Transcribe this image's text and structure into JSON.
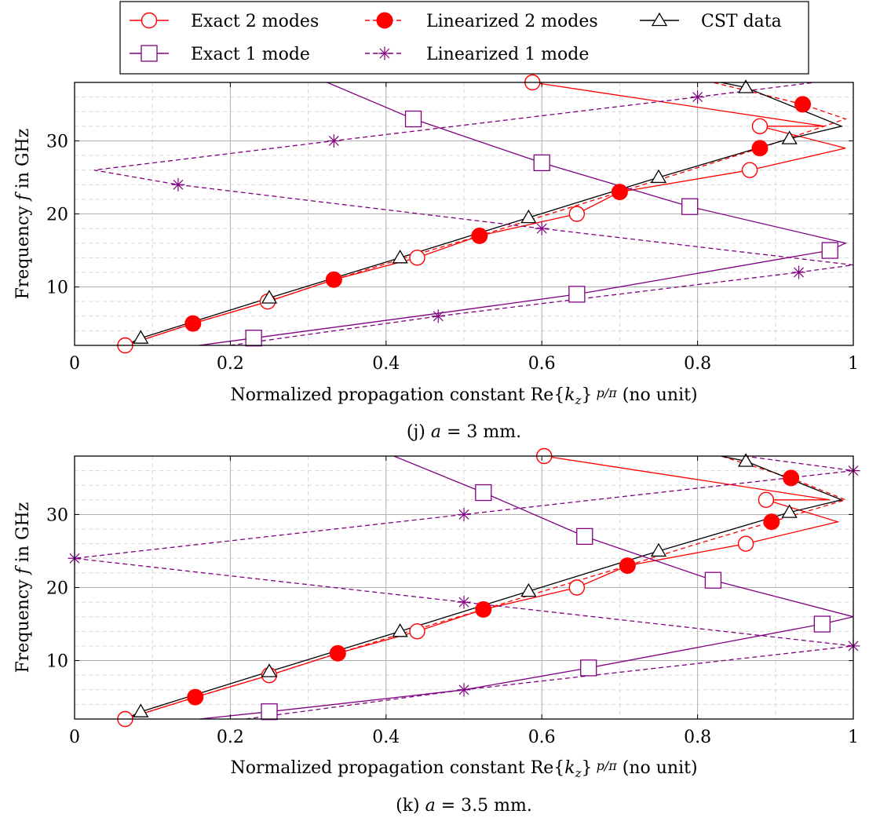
{
  "legend": {
    "items": [
      {
        "label": "Exact 2 modes",
        "series": "exact2"
      },
      {
        "label": "Linearized 2 modes",
        "series": "lin2"
      },
      {
        "label": "CST data",
        "series": "cst"
      },
      {
        "label": "Exact 1 mode",
        "series": "exact1"
      },
      {
        "label": "Linearized 1 mode",
        "series": "lin1"
      }
    ]
  },
  "colors": {
    "red": "#ff0000",
    "purple": "#800080",
    "black": "#000000",
    "grid": "#b0b0b0",
    "minorgrid": "#d8d8d8"
  },
  "chart_data": [
    {
      "type": "line",
      "caption_prefix": "(j) ",
      "caption_var": "a",
      "caption_value": " = 3 mm.",
      "xlabel": "Normalized propagation constant Re{k_z} p/π (no unit)",
      "ylabel": "Frequency f in GHz",
      "xlim": [
        0,
        1
      ],
      "ylim": [
        2,
        38
      ],
      "xticks": [
        "0",
        "0.2",
        "0.4",
        "0.6",
        "0.8",
        "1"
      ],
      "yticks": [
        "10",
        "20",
        "30"
      ],
      "grid": true,
      "series": [
        {
          "key": "exact2",
          "x": [
            0.065,
            0.152,
            0.248,
            0.333,
            0.44,
            0.52,
            0.645,
            0.7,
            0.867,
            0.99,
            0.88,
            0.963,
            0.588
          ],
          "y": [
            2,
            5,
            8,
            11,
            14,
            17,
            20,
            23,
            26,
            29,
            32,
            32,
            38
          ],
          "markers_x": [
            0.065,
            0.248,
            0.44,
            0.645,
            0.867,
            0.88,
            0.588
          ],
          "markers_y": [
            2,
            8,
            14,
            20,
            26,
            32,
            38
          ]
        },
        {
          "key": "lin2",
          "x": [
            0.065,
            0.152,
            0.248,
            0.333,
            0.425,
            0.52,
            0.61,
            0.7,
            0.79,
            0.88,
            0.99,
            0.935,
            0.82
          ],
          "y": [
            2,
            5,
            8,
            11,
            14,
            17,
            20,
            23,
            26,
            29,
            33,
            35,
            38
          ],
          "markers_x": [
            0.152,
            0.333,
            0.52,
            0.7,
            0.88,
            0.935
          ],
          "markers_y": [
            5,
            11,
            17,
            23,
            29,
            35
          ]
        },
        {
          "key": "cst",
          "x": [
            0.065,
            0.085,
            0.25,
            0.418,
            0.583,
            0.75,
            0.918,
            0.985,
            0.862,
            0.83
          ],
          "y": [
            2,
            3,
            8.5,
            14,
            19.5,
            25,
            30.3,
            32,
            37.3,
            38
          ],
          "markers_x": [
            0.085,
            0.25,
            0.418,
            0.583,
            0.75,
            0.918,
            0.862
          ],
          "markers_y": [
            3,
            8.5,
            14,
            19.5,
            25,
            30.3,
            37.3
          ]
        },
        {
          "key": "exact1",
          "x": [
            0.16,
            0.23,
            0.44,
            0.645,
            0.97,
            0.99,
            0.79,
            0.6,
            0.435,
            0.28
          ],
          "y": [
            2,
            3,
            6,
            9,
            15,
            16,
            21,
            27,
            33,
            40
          ],
          "markers_x": [
            0.23,
            0.645,
            0.97,
            0.79,
            0.6,
            0.435
          ],
          "markers_y": [
            3,
            9,
            15,
            21,
            27,
            33
          ]
        },
        {
          "key": "lin1",
          "x": [
            0.2,
            0.467,
            0.93,
            1.0,
            0.6,
            0.133,
            0.025,
            0.333,
            0.8,
            0.95
          ],
          "y": [
            2,
            6,
            12,
            13,
            18,
            24,
            26,
            30,
            36,
            38
          ],
          "markers_x": [
            0.467,
            0.93,
            0.6,
            0.133,
            0.333,
            0.8
          ],
          "markers_y": [
            6,
            12,
            18,
            24,
            30,
            36
          ]
        }
      ]
    },
    {
      "type": "line",
      "caption_prefix": "(k) ",
      "caption_var": "a",
      "caption_value": " = 3.5 mm.",
      "xlabel": "Normalized propagation constant Re{k_z} p/π (no unit)",
      "ylabel": "Frequency f in GHz",
      "xlim": [
        0,
        1
      ],
      "ylim": [
        2,
        38
      ],
      "xticks": [
        "0",
        "0.2",
        "0.4",
        "0.6",
        "0.8",
        "1"
      ],
      "yticks": [
        "10",
        "20",
        "30"
      ],
      "grid": true,
      "series": [
        {
          "key": "exact2",
          "x": [
            0.065,
            0.155,
            0.25,
            0.338,
            0.44,
            0.525,
            0.645,
            0.71,
            0.862,
            0.98,
            0.888,
            0.97,
            0.603
          ],
          "y": [
            2,
            5,
            8,
            11,
            14,
            17,
            20,
            23,
            26,
            29,
            32,
            32,
            38
          ],
          "markers_x": [
            0.065,
            0.25,
            0.44,
            0.645,
            0.862,
            0.888,
            0.603
          ],
          "markers_y": [
            2,
            8,
            14,
            20,
            26,
            32,
            38
          ]
        },
        {
          "key": "lin2",
          "x": [
            0.065,
            0.155,
            0.25,
            0.338,
            0.43,
            0.525,
            0.617,
            0.71,
            0.8,
            0.895,
            0.99,
            0.92,
            0.83
          ],
          "y": [
            2,
            5,
            8,
            11,
            14,
            17,
            20,
            23,
            26,
            29,
            32,
            35,
            38
          ],
          "markers_x": [
            0.155,
            0.338,
            0.525,
            0.71,
            0.895,
            0.92
          ],
          "markers_y": [
            5,
            11,
            17,
            23,
            29,
            35
          ]
        },
        {
          "key": "cst",
          "x": [
            0.065,
            0.085,
            0.25,
            0.418,
            0.583,
            0.75,
            0.918,
            0.985,
            0.862,
            0.83
          ],
          "y": [
            2,
            3,
            8.5,
            14,
            19.5,
            25,
            30.3,
            32,
            37.3,
            38
          ],
          "markers_x": [
            0.085,
            0.25,
            0.418,
            0.583,
            0.75,
            0.918,
            0.862
          ],
          "markers_y": [
            3,
            8.5,
            14,
            19.5,
            25,
            30.3,
            37.3
          ]
        },
        {
          "key": "exact1",
          "x": [
            0.16,
            0.25,
            0.5,
            0.66,
            0.96,
            1.0,
            0.82,
            0.655,
            0.525,
            0.41
          ],
          "y": [
            2,
            3,
            6,
            9,
            15,
            16,
            21,
            27,
            33,
            38
          ],
          "markers_x": [
            0.25,
            0.66,
            0.96,
            0.82,
            0.655,
            0.525
          ],
          "markers_y": [
            3,
            9,
            15,
            21,
            27,
            33
          ]
        },
        {
          "key": "lin1",
          "x": [
            0.22,
            0.5,
            1.0,
            0.5,
            0.0,
            0.5,
            1.0,
            0.86
          ],
          "y": [
            2,
            6,
            12,
            18,
            24,
            30,
            36,
            38
          ],
          "markers_x": [
            0.5,
            1.0,
            0.5,
            0.0,
            0.5,
            1.0
          ],
          "markers_y": [
            6,
            12,
            18,
            24,
            30,
            36
          ]
        }
      ]
    }
  ]
}
